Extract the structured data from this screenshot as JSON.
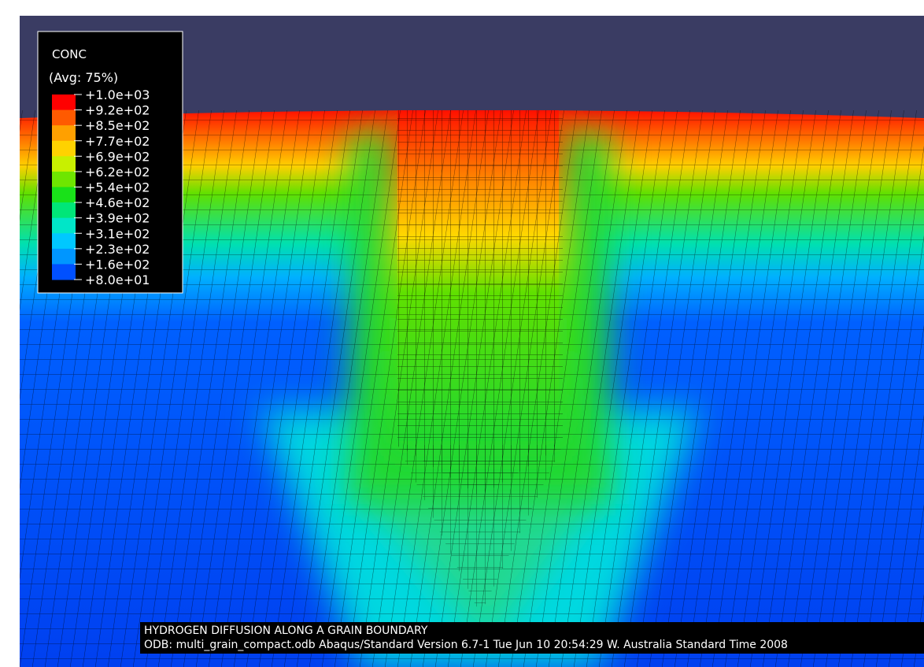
{
  "legend": {
    "title": "CONC",
    "subtitle": "(Avg: 75%)",
    "labels": [
      "+1.0e+03",
      "+9.2e+02",
      "+8.5e+02",
      "+7.7e+02",
      "+6.9e+02",
      "+6.2e+02",
      "+5.4e+02",
      "+4.6e+02",
      "+3.9e+02",
      "+3.1e+02",
      "+2.3e+02",
      "+1.6e+02",
      "+8.0e+01"
    ],
    "colors": [
      "#ff0000",
      "#ff5a00",
      "#ffa000",
      "#ffd200",
      "#c8f000",
      "#6ee600",
      "#19e119",
      "#00e678",
      "#00e6c8",
      "#00c8ff",
      "#0096ff",
      "#0050ff"
    ]
  },
  "footer": {
    "lines": [
      "HYDROGEN DIFFUSION ALONG A GRAIN BOUNDARY",
      "ODB: multi_grain_compact.odb    Abaqus/Standard Version 6.7-1    Tue Jun 10 20:54:29 W. Australia Standard Time 2008"
    ]
  }
}
